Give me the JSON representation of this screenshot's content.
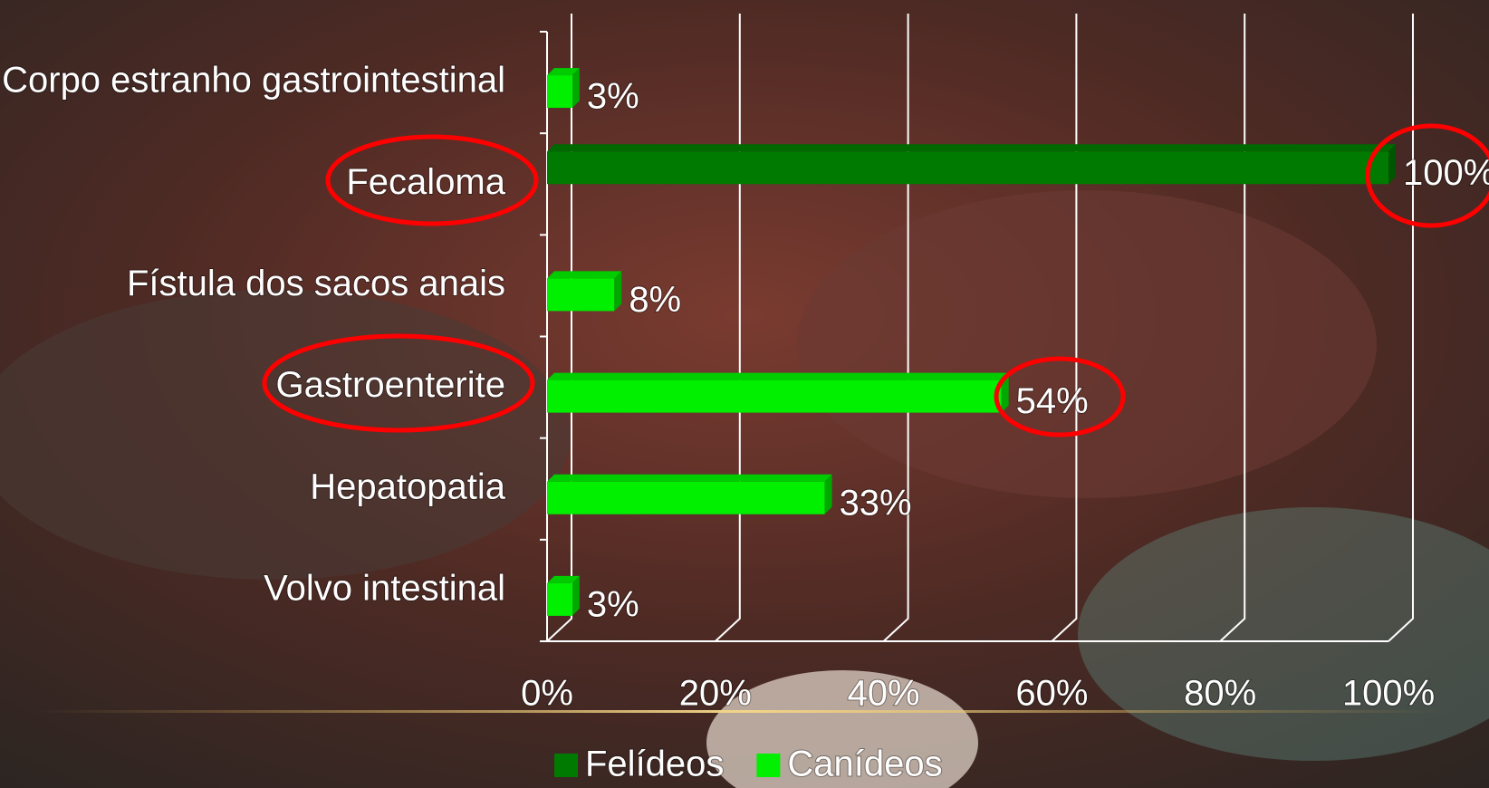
{
  "chart_data": {
    "type": "bar",
    "orientation": "horizontal",
    "categories": [
      "Corpo estranho gastrointestinal",
      "Fecaloma",
      "Fístula dos sacos anais",
      "Gastroenterite",
      "Hepatopatia",
      "Volvo intestinal"
    ],
    "series": [
      {
        "name": "Felídeos",
        "color": "#007a00",
        "values": [
          null,
          100,
          null,
          null,
          null,
          null
        ],
        "value_labels": [
          null,
          "100%",
          null,
          null,
          null,
          null
        ]
      },
      {
        "name": "Canídeos",
        "color": "#00f000",
        "values": [
          3,
          null,
          8,
          54,
          33,
          3
        ],
        "value_labels": [
          "3%",
          null,
          "8%",
          "54%",
          "33%",
          "3%"
        ]
      }
    ],
    "xlim": [
      0,
      100
    ],
    "xticks": [
      {
        "value": 0,
        "label": "0%"
      },
      {
        "value": 20,
        "label": "20%"
      },
      {
        "value": 40,
        "label": "40%"
      },
      {
        "value": 60,
        "label": "60%"
      },
      {
        "value": 80,
        "label": "80%"
      },
      {
        "value": 100,
        "label": "100%"
      }
    ],
    "grid": true,
    "legend": "bottom"
  }
}
